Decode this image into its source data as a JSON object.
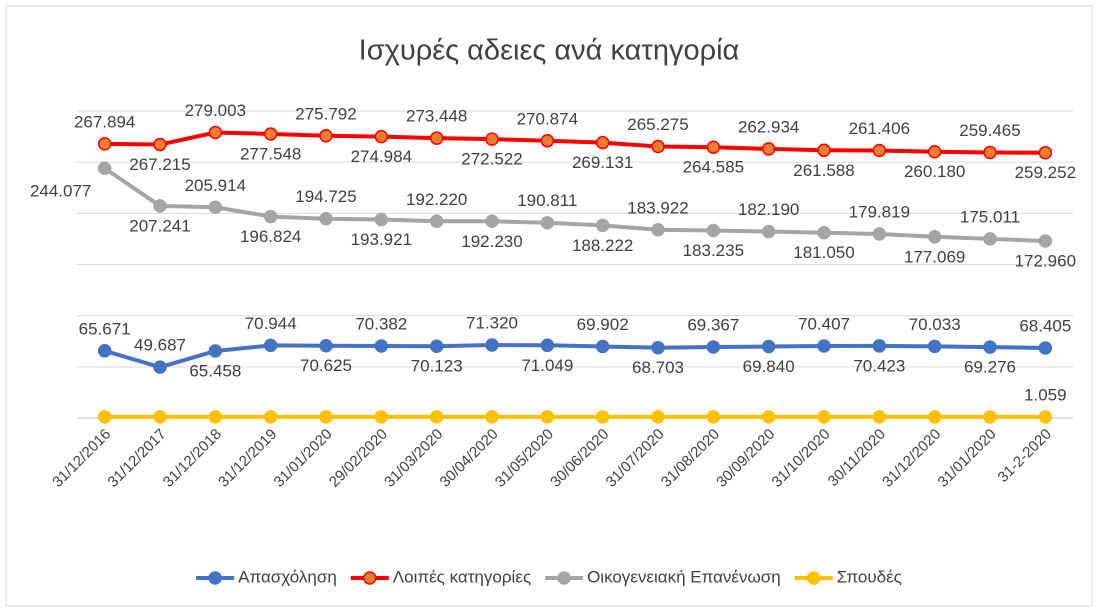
{
  "chart_data": {
    "type": "line",
    "title": "Ισχυρές αδειες ανά κατηγορία",
    "categories": [
      "31/12/2016",
      "31/12/2017",
      "31/12/2018",
      "31/12/2019",
      "31/01/2020",
      "29/02/2020",
      "31/03/2020",
      "30/04/2020",
      "31/05/2020",
      "30/06/2020",
      "31/07/2020",
      "31/08/2020",
      "30/09/2020",
      "31/10/2020",
      "30/11/2020",
      "31/12/2020",
      "31/01/2020",
      "31-2-2020"
    ],
    "series": [
      {
        "name": "Απασχόληση",
        "color": "#4472c4",
        "marker_fill": "#4472c4",
        "values": [
          65671,
          49687,
          65458,
          70944,
          70625,
          70382,
          70123,
          71320,
          71049,
          69902,
          68703,
          69367,
          69840,
          70407,
          70423,
          70033,
          69276,
          68405
        ],
        "value_labels": [
          "65.671",
          "49.687",
          "65.458",
          "70.944",
          "70.625",
          "70.382",
          "70.123",
          "71.320",
          "71.049",
          "69.902",
          "68.703",
          "69.367",
          "69.840",
          "70.407",
          "70.423",
          "70.033",
          "69.276",
          "68.405"
        ]
      },
      {
        "name": "Λοιπές κατηγορίες",
        "color": "#ff0000",
        "marker_fill": "#ed7d31",
        "values": [
          267894,
          267215,
          279003,
          277548,
          275792,
          274984,
          273448,
          272522,
          270874,
          269131,
          265275,
          264585,
          262934,
          261588,
          261406,
          260180,
          259465,
          259252
        ],
        "value_labels": [
          "267.894",
          "267.215",
          "279.003",
          "277.548",
          "275.792",
          "274.984",
          "273.448",
          "272.522",
          "270.874",
          "269.131",
          "265.275",
          "264.585",
          "262.934",
          "261.588",
          "261.406",
          "260.180",
          "259.465",
          "259.252"
        ]
      },
      {
        "name": "Οικογενειακή Επανένωση",
        "color": "#a5a5a5",
        "marker_fill": "#a5a5a5",
        "values": [
          244077,
          207241,
          205914,
          196824,
          194725,
          193921,
          192220,
          192230,
          190811,
          188222,
          183922,
          183235,
          182190,
          181050,
          179819,
          177069,
          175011,
          172960
        ],
        "value_labels": [
          "244.077",
          "207.241",
          "205.914",
          "196.824",
          "194.725",
          "193.921",
          "192.220",
          "192.230",
          "190.811",
          "188.222",
          "183.922",
          "183.235",
          "182.190",
          "181.050",
          "179.819",
          "177.069",
          "175.011",
          "172.960"
        ]
      },
      {
        "name": "Σπουδές",
        "color": "#ffc000",
        "marker_fill": "#ffc000",
        "values": [
          1100,
          1100,
          1100,
          1100,
          1100,
          1100,
          1100,
          1100,
          1100,
          1100,
          1100,
          1100,
          1100,
          1100,
          1100,
          1100,
          1050,
          1059
        ],
        "value_labels": [
          null,
          null,
          null,
          null,
          null,
          null,
          null,
          null,
          null,
          null,
          null,
          null,
          null,
          null,
          null,
          null,
          null,
          "1.059"
        ]
      }
    ],
    "ylim": [
      0,
      300000
    ],
    "yticks": [
      0,
      50000,
      100000,
      150000,
      200000,
      250000,
      300000
    ],
    "grid": true,
    "legend": "bottom"
  }
}
